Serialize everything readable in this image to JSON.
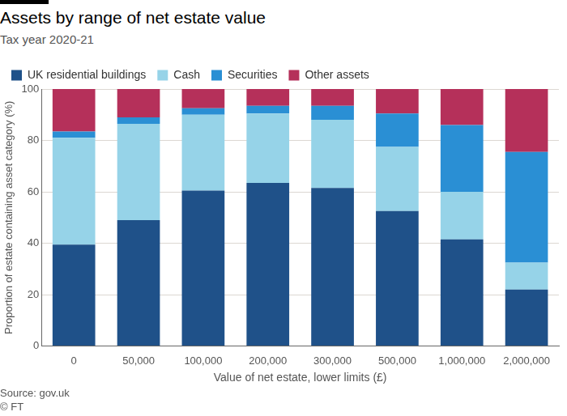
{
  "chart_data": {
    "type": "bar",
    "title": "Assets by range of net estate value",
    "subtitle": "Tax year 2020-21",
    "x_label": "Value of net estate, lower limits (£)",
    "y_label": "Proportion of estate containing asset category (%)",
    "source": "Source: gov.uk",
    "credit": "© FT",
    "categories": [
      "0",
      "50,000",
      "100,000",
      "200,000",
      "300,000",
      "500,000",
      "1,000,000",
      "2,000,000"
    ],
    "series": [
      {
        "name": "UK residential buildings",
        "color": "#1f5189",
        "values": [
          39.5,
          49,
          60.5,
          63.5,
          61.5,
          52.5,
          41.5,
          22
        ]
      },
      {
        "name": "Cash",
        "color": "#96d3e8",
        "values": [
          41.5,
          37.5,
          29.5,
          27,
          26.5,
          25,
          18.5,
          10.5
        ]
      },
      {
        "name": "Securities",
        "color": "#2a8fd4",
        "values": [
          2.5,
          2.5,
          2.5,
          3,
          5.5,
          13,
          26,
          43
        ]
      },
      {
        "name": "Other assets",
        "color": "#b5305a",
        "values": [
          16.5,
          11,
          7.5,
          6.5,
          6.5,
          9.5,
          14,
          24.5
        ]
      }
    ],
    "stacked": true,
    "ylim": [
      0,
      100
    ],
    "yticks": [
      0,
      20,
      40,
      60,
      80,
      100
    ],
    "grid": true,
    "legend": "top-left"
  }
}
